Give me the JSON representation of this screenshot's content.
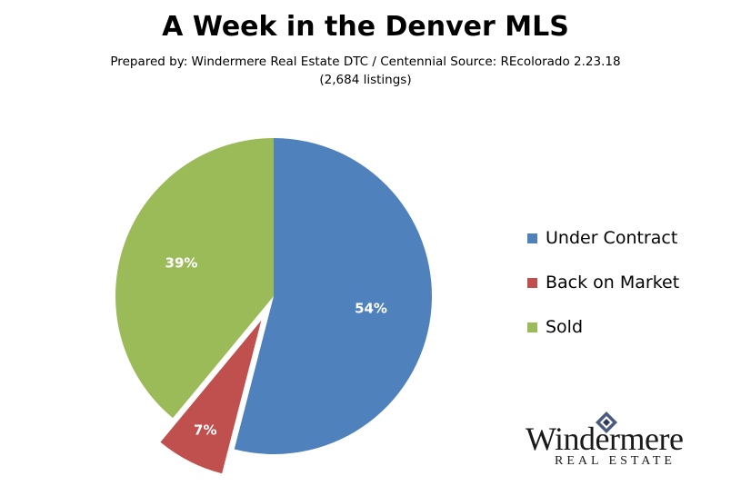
{
  "chart_data": {
    "type": "pie",
    "title": "A Week in the Denver MLS",
    "subtitle": "Prepared by: Windermere Real Estate DTC / Centennial Source: REcolorado  2.23.18",
    "note": "(2,684 listings)",
    "slices": [
      {
        "label": "Under Contract",
        "value": 54,
        "display": "54%",
        "color": "#4F81BD",
        "exploded": false
      },
      {
        "label": "Back on Market",
        "value": 7,
        "display": "7%",
        "color": "#C0504D",
        "exploded": true
      },
      {
        "label": "Sold",
        "value": 39,
        "display": "39%",
        "color": "#9BBB59",
        "exploded": false
      }
    ],
    "legend_position": "right"
  },
  "legend": {
    "items": [
      {
        "label": "Under Contract",
        "color": "#4F81BD"
      },
      {
        "label": "Back on Market",
        "color": "#C0504D"
      },
      {
        "label": "Sold",
        "color": "#9BBB59"
      }
    ]
  },
  "logo": {
    "name": "Windermere",
    "tagline": "REAL ESTATE"
  }
}
